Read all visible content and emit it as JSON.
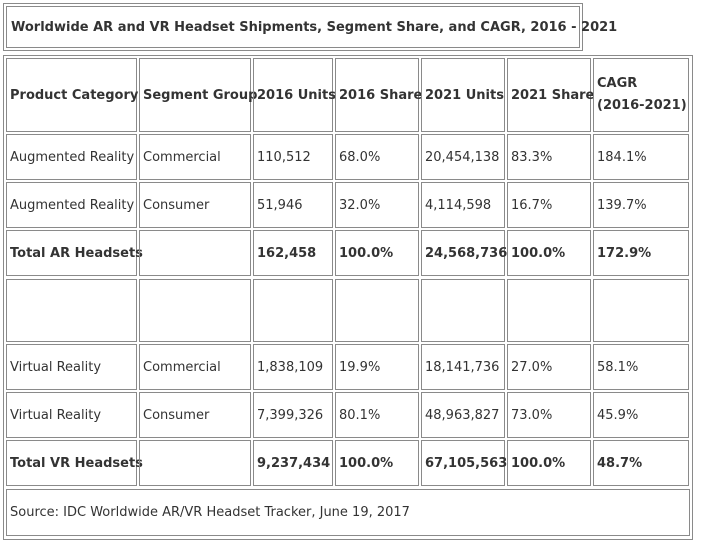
{
  "title": "Worldwide AR and VR Headset Shipments, Segment Share, and CAGR, 2016 - 2021",
  "headers": {
    "product_category": "Product Category",
    "segment_group": "Segment Group",
    "units_2016": "2016 Units",
    "share_2016": "2016 Share",
    "units_2021": "2021 Units",
    "share_2021": "2021 Share",
    "cagr_line1": "CAGR",
    "cagr_line2": "(2016-2021)"
  },
  "rows": [
    {
      "category": "Augmented Reality",
      "segment": "Commercial",
      "u2016": "110,512",
      "s2016": "68.0%",
      "u2021": "20,454,138",
      "s2021": "83.3%",
      "cagr": "184.1%"
    },
    {
      "category": "Augmented Reality",
      "segment": "Consumer",
      "u2016": "51,946",
      "s2016": "32.0%",
      "u2021": "4,114,598",
      "s2021": "16.7%",
      "cagr": "139.7%"
    },
    {
      "category": "Total AR Headsets",
      "segment": "",
      "u2016": "162,458",
      "s2016": "100.0%",
      "u2021": "24,568,736",
      "s2021": "100.0%",
      "cagr": "172.9%"
    },
    {
      "category": "",
      "segment": "",
      "u2016": "",
      "s2016": "",
      "u2021": "",
      "s2021": "",
      "cagr": ""
    },
    {
      "category": "Virtual Reality",
      "segment": "Commercial",
      "u2016": "1,838,109",
      "s2016": "19.9%",
      "u2021": "18,141,736",
      "s2021": "27.0%",
      "cagr": "58.1%"
    },
    {
      "category": "Virtual Reality",
      "segment": "Consumer",
      "u2016": "7,399,326",
      "s2016": "80.1%",
      "u2021": "48,963,827",
      "s2021": "73.0%",
      "cagr": "45.9%"
    },
    {
      "category": "Total VR Headsets",
      "segment": "",
      "u2016": "9,237,434",
      "s2016": "100.0%",
      "u2021": "67,105,563",
      "s2021": "100.0%",
      "cagr": "48.7%"
    }
  ],
  "source": "Source: IDC Worldwide AR/VR Headset Tracker, June 19, 2017"
}
